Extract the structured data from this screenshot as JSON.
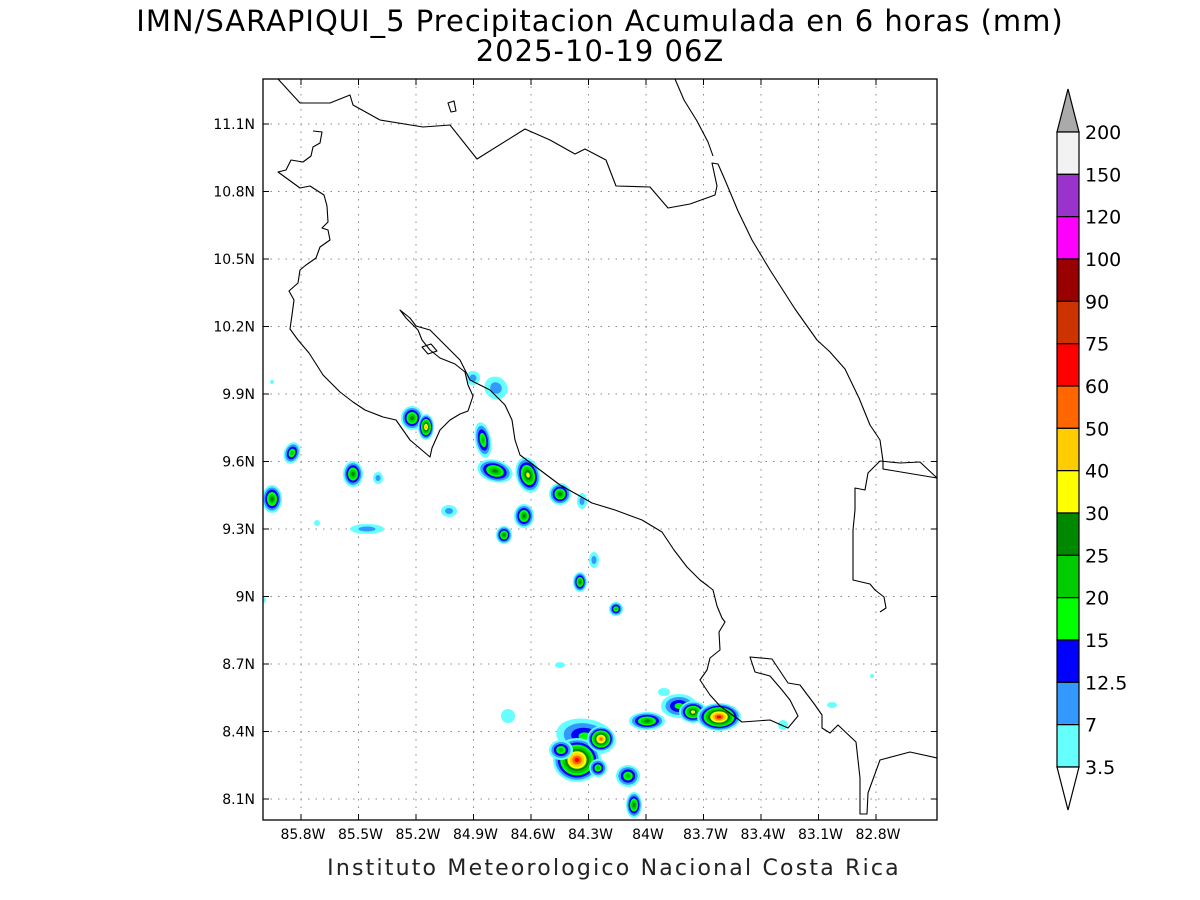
{
  "title": "IMN/SARAPIQUI_5 Precipitacion Acumulada en 6 horas (mm)",
  "subtitle": "2025-10-19 06Z",
  "footer": "Instituto Meteorologico Nacional Costa Rica",
  "map": {
    "lon_labels": [
      "85.8W",
      "85.5W",
      "85.2W",
      "84.9W",
      "84.6W",
      "84.3W",
      "84W",
      "83.7W",
      "83.4W",
      "83.1W",
      "82.8W"
    ],
    "lat_labels": [
      "11.1N",
      "10.8N",
      "10.5N",
      "10.2N",
      "9.9N",
      "9.6N",
      "9.3N",
      "9N",
      "8.7N",
      "8.4N",
      "8.1N"
    ]
  },
  "colorbar": {
    "labels": [
      "200",
      "150",
      "120",
      "100",
      "90",
      "75",
      "60",
      "50",
      "40",
      "30",
      "25",
      "20",
      "15",
      "12.5",
      "7",
      "3.5"
    ],
    "colors": [
      "#aaaaaa",
      "#f2f2f2",
      "#9933cc",
      "#ff00ff",
      "#990000",
      "#cc3300",
      "#ff0000",
      "#ff6600",
      "#ffcc00",
      "#ffff00",
      "#008800",
      "#00cc00",
      "#00ff00",
      "#0000ff",
      "#3399ff",
      "#66ffff",
      "#ffffff"
    ]
  },
  "precip_colors": {
    "l1": "#66ffff",
    "l2": "#3399ff",
    "l3": "#0000ff",
    "l4": "#00ff00",
    "l5": "#00cc00",
    "l6": "#008800",
    "l7": "#ffff00",
    "l8": "#ffcc00",
    "l9": "#ff6600",
    "l10": "#ff0000"
  }
}
